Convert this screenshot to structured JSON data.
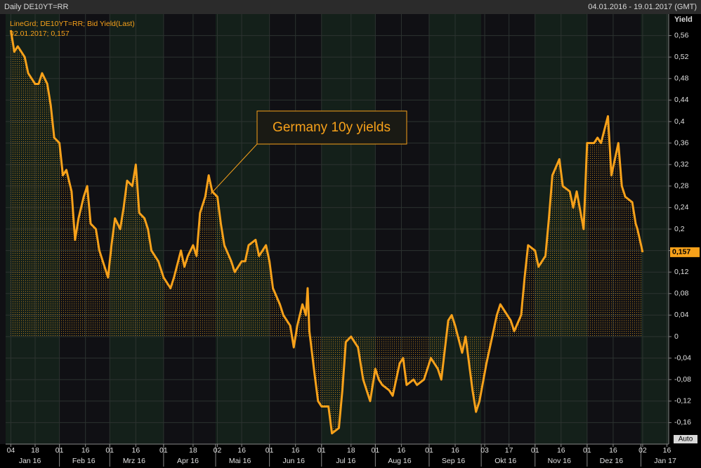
{
  "chart_data": {
    "type": "line",
    "title": "Daily DE10YT=RR",
    "date_range": "04.01.2016 - 19.01.2017 (GMT)",
    "y_label": "Yield",
    "annotation": "Germany 10y yields",
    "legend_detail": "02.01.2017; 0,157",
    "auto_button": "Auto",
    "last_value": {
      "value": 0.157,
      "label": "0,157"
    },
    "series": [
      {
        "name": "LineGrd; DE10YT=RR; Bid Yield(Last)",
        "color": "#f7a11a",
        "x": [
          "2016-01-04",
          "2016-01-06",
          "2016-01-08",
          "2016-01-12",
          "2016-01-14",
          "2016-01-18",
          "2016-01-20",
          "2016-01-22",
          "2016-01-25",
          "2016-01-27",
          "2016-01-29",
          "2016-02-01",
          "2016-02-03",
          "2016-02-05",
          "2016-02-08",
          "2016-02-10",
          "2016-02-12",
          "2016-02-15",
          "2016-02-17",
          "2016-02-19",
          "2016-02-22",
          "2016-02-24",
          "2016-02-26",
          "2016-02-29",
          "2016-03-02",
          "2016-03-04",
          "2016-03-07",
          "2016-03-09",
          "2016-03-11",
          "2016-03-14",
          "2016-03-16",
          "2016-03-18",
          "2016-03-21",
          "2016-03-23",
          "2016-03-25",
          "2016-03-29",
          "2016-04-01",
          "2016-04-05",
          "2016-04-07",
          "2016-04-11",
          "2016-04-13",
          "2016-04-15",
          "2016-04-18",
          "2016-04-20",
          "2016-04-22",
          "2016-04-25",
          "2016-04-27",
          "2016-04-29",
          "2016-05-02",
          "2016-05-04",
          "2016-05-06",
          "2016-05-10",
          "2016-05-12",
          "2016-05-16",
          "2016-05-18",
          "2016-05-20",
          "2016-05-24",
          "2016-05-26",
          "2016-05-30",
          "2016-06-01",
          "2016-06-03",
          "2016-06-07",
          "2016-06-09",
          "2016-06-13",
          "2016-06-15",
          "2016-06-17",
          "2016-06-20",
          "2016-06-22",
          "2016-06-23",
          "2016-06-24",
          "2016-06-27",
          "2016-06-29",
          "2016-07-01",
          "2016-07-05",
          "2016-07-07",
          "2016-07-11",
          "2016-07-13",
          "2016-07-15",
          "2016-07-18",
          "2016-07-20",
          "2016-07-22",
          "2016-07-25",
          "2016-07-27",
          "2016-07-29",
          "2016-08-01",
          "2016-08-03",
          "2016-08-05",
          "2016-08-09",
          "2016-08-11",
          "2016-08-15",
          "2016-08-17",
          "2016-08-19",
          "2016-08-23",
          "2016-08-25",
          "2016-08-29",
          "2016-08-31",
          "2016-09-02",
          "2016-09-06",
          "2016-09-08",
          "2016-09-12",
          "2016-09-14",
          "2016-09-16",
          "2016-09-20",
          "2016-09-22",
          "2016-09-26",
          "2016-09-28",
          "2016-09-30",
          "2016-10-04",
          "2016-10-06",
          "2016-10-10",
          "2016-10-12",
          "2016-10-14",
          "2016-10-18",
          "2016-10-20",
          "2016-10-24",
          "2016-10-26",
          "2016-10-28",
          "2016-11-01",
          "2016-11-03",
          "2016-11-07",
          "2016-11-09",
          "2016-11-11",
          "2016-11-15",
          "2016-11-17",
          "2016-11-21",
          "2016-11-23",
          "2016-11-25",
          "2016-11-29",
          "2016-12-01",
          "2016-12-05",
          "2016-12-07",
          "2016-12-09",
          "2016-12-13",
          "2016-12-15",
          "2016-12-19",
          "2016-12-21",
          "2016-12-23",
          "2016-12-27",
          "2016-12-29",
          "2016-12-30",
          "2017-01-02"
        ],
        "values": [
          0.57,
          0.53,
          0.54,
          0.52,
          0.49,
          0.47,
          0.47,
          0.49,
          0.47,
          0.43,
          0.37,
          0.36,
          0.3,
          0.31,
          0.27,
          0.18,
          0.22,
          0.26,
          0.28,
          0.21,
          0.2,
          0.16,
          0.14,
          0.11,
          0.17,
          0.22,
          0.2,
          0.24,
          0.29,
          0.28,
          0.32,
          0.23,
          0.22,
          0.2,
          0.16,
          0.14,
          0.11,
          0.09,
          0.11,
          0.16,
          0.13,
          0.15,
          0.17,
          0.15,
          0.23,
          0.26,
          0.3,
          0.27,
          0.26,
          0.21,
          0.17,
          0.14,
          0.12,
          0.14,
          0.14,
          0.17,
          0.18,
          0.15,
          0.17,
          0.14,
          0.09,
          0.06,
          0.04,
          0.02,
          -0.02,
          0.02,
          0.06,
          0.04,
          0.09,
          0.01,
          -0.07,
          -0.12,
          -0.13,
          -0.13,
          -0.18,
          -0.17,
          -0.1,
          -0.01,
          0.0,
          -0.01,
          -0.02,
          -0.08,
          -0.1,
          -0.12,
          -0.06,
          -0.08,
          -0.09,
          -0.1,
          -0.11,
          -0.05,
          -0.04,
          -0.09,
          -0.08,
          -0.09,
          -0.08,
          -0.06,
          -0.04,
          -0.06,
          -0.08,
          0.03,
          0.04,
          0.02,
          -0.03,
          0.0,
          -0.1,
          -0.14,
          -0.12,
          -0.05,
          -0.02,
          0.04,
          0.06,
          0.05,
          0.03,
          0.01,
          0.04,
          0.11,
          0.17,
          0.16,
          0.13,
          0.15,
          0.22,
          0.3,
          0.33,
          0.28,
          0.27,
          0.24,
          0.27,
          0.2,
          0.36,
          0.36,
          0.37,
          0.36,
          0.41,
          0.3,
          0.36,
          0.28,
          0.26,
          0.25,
          0.21,
          0.2,
          0.157
        ]
      }
    ],
    "xlim": [
      "2016-01-01",
      "2017-01-17"
    ],
    "xticks": [
      {
        "value": "2016-01-04",
        "label": "04"
      },
      {
        "value": "2016-01-18",
        "label": "18"
      },
      {
        "value": "2016-02-01",
        "label": "01"
      },
      {
        "value": "2016-02-16",
        "label": "16"
      },
      {
        "value": "2016-03-01",
        "label": "01"
      },
      {
        "value": "2016-03-16",
        "label": "16"
      },
      {
        "value": "2016-04-01",
        "label": "01"
      },
      {
        "value": "2016-04-18",
        "label": "18"
      },
      {
        "value": "2016-05-02",
        "label": "02"
      },
      {
        "value": "2016-05-16",
        "label": "16"
      },
      {
        "value": "2016-06-01",
        "label": "01"
      },
      {
        "value": "2016-06-16",
        "label": "16"
      },
      {
        "value": "2016-07-01",
        "label": "01"
      },
      {
        "value": "2016-07-18",
        "label": "18"
      },
      {
        "value": "2016-08-01",
        "label": "01"
      },
      {
        "value": "2016-08-16",
        "label": "16"
      },
      {
        "value": "2016-09-01",
        "label": "01"
      },
      {
        "value": "2016-09-16",
        "label": "16"
      },
      {
        "value": "2016-10-03",
        "label": "03"
      },
      {
        "value": "2016-10-17",
        "label": "17"
      },
      {
        "value": "2016-11-01",
        "label": "01"
      },
      {
        "value": "2016-11-16",
        "label": "16"
      },
      {
        "value": "2016-12-01",
        "label": "01"
      },
      {
        "value": "2016-12-16",
        "label": "16"
      },
      {
        "value": "2017-01-02",
        "label": "02"
      },
      {
        "value": "2017-01-16",
        "label": "16"
      }
    ],
    "month_labels": [
      "Jan 16",
      "Feb 16",
      "Mrz 16",
      "Apr 16",
      "Mai 16",
      "Jun 16",
      "Jul 16",
      "Aug 16",
      "Sep 16",
      "Okt 16",
      "Nov 16",
      "Dez 16",
      "Jan 17"
    ],
    "ylim": [
      -0.2,
      0.6
    ],
    "yticks": [
      {
        "value": -0.16,
        "label": "-0,16"
      },
      {
        "value": -0.12,
        "label": "-0,12"
      },
      {
        "value": -0.08,
        "label": "-0,08"
      },
      {
        "value": -0.04,
        "label": "-0,04"
      },
      0,
      {
        "value": 0.04,
        "label": "0,04"
      },
      {
        "value": 0.08,
        "label": "0,08"
      },
      {
        "value": 0.12,
        "label": "0,12"
      },
      {
        "value": 0.16,
        "label": "0,16"
      },
      {
        "value": 0.2,
        "label": "0,2"
      },
      {
        "value": 0.24,
        "label": "0,24"
      },
      {
        "value": 0.28,
        "label": "0,28"
      },
      {
        "value": 0.32,
        "label": "0,32"
      },
      {
        "value": 0.36,
        "label": "0,36"
      },
      {
        "value": 0.4,
        "label": "0,4"
      },
      {
        "value": 0.44,
        "label": "0,44"
      },
      {
        "value": 0.48,
        "label": "0,48"
      },
      {
        "value": 0.52,
        "label": "0,52"
      },
      {
        "value": 0.56,
        "label": "0,56"
      }
    ],
    "grid": true
  }
}
